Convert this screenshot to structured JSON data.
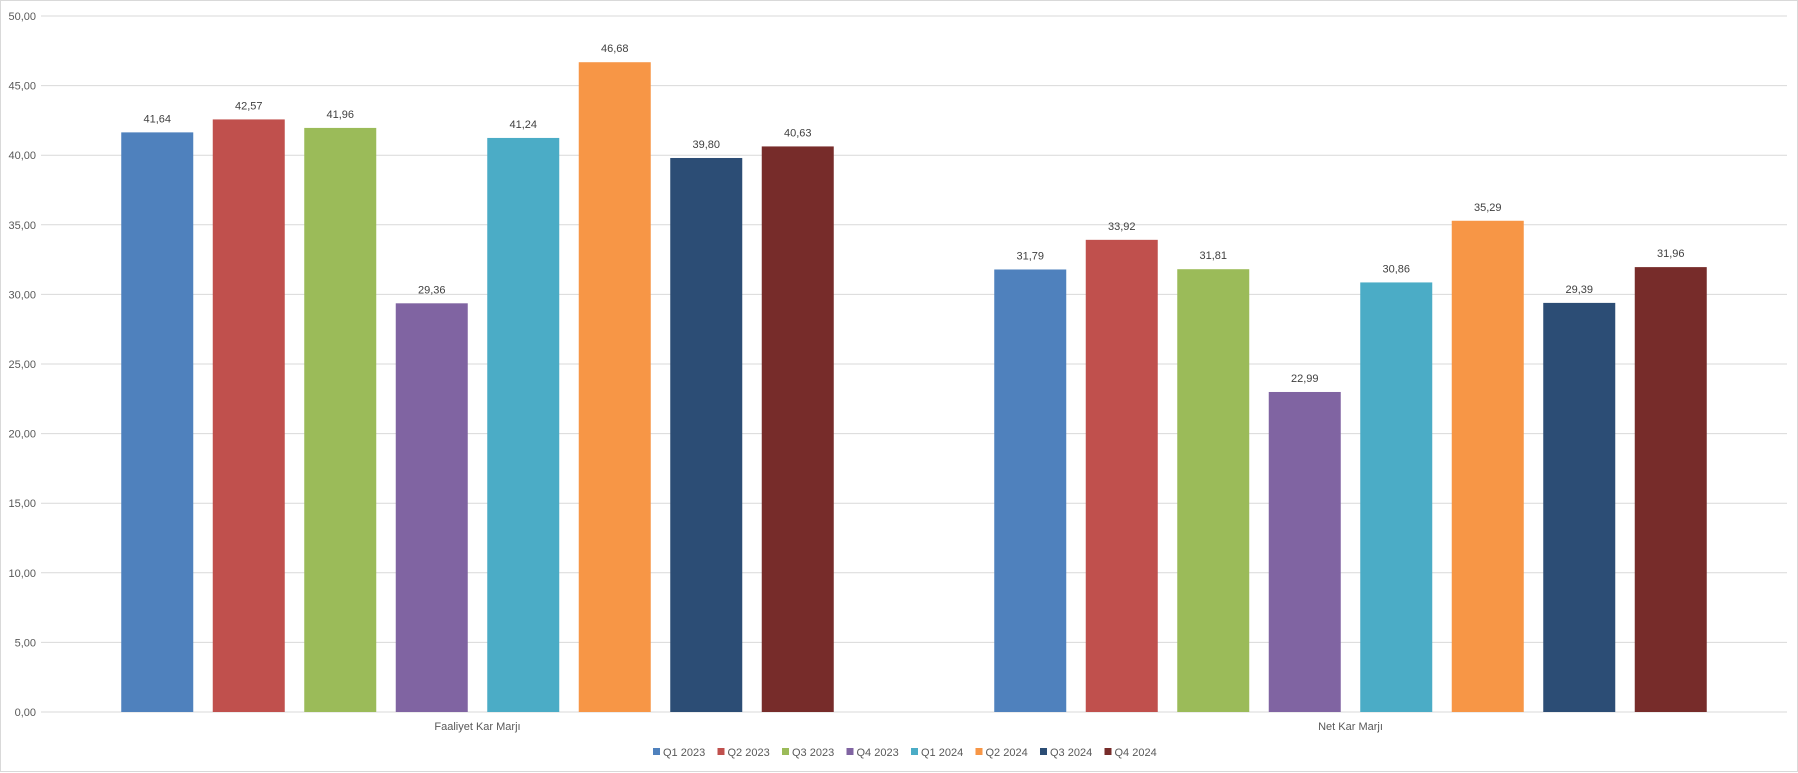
{
  "chart_data": {
    "type": "bar",
    "title": "",
    "xlabel": "",
    "ylabel": "",
    "categories": [
      "Faaliyet Kar Marjı",
      "Net Kar Marjı"
    ],
    "ylim": [
      0,
      50
    ],
    "yticks": [
      0,
      5,
      10,
      15,
      20,
      25,
      30,
      35,
      40,
      45,
      50
    ],
    "ytick_labels": [
      "0,00",
      "5,00",
      "10,00",
      "15,00",
      "20,00",
      "25,00",
      "30,00",
      "35,00",
      "40,00",
      "45,00",
      "50,00"
    ],
    "grid": true,
    "legend_position": "bottom",
    "series": [
      {
        "name": "Q1 2023",
        "color": "#4f81bd",
        "values": [
          41.64,
          31.79
        ],
        "labels": [
          "41,64",
          "31,79"
        ]
      },
      {
        "name": "Q2 2023",
        "color": "#c0504d",
        "values": [
          42.57,
          33.92
        ],
        "labels": [
          "42,57",
          "33,92"
        ]
      },
      {
        "name": "Q3 2023",
        "color": "#9bbb59",
        "values": [
          41.96,
          31.81
        ],
        "labels": [
          "41,96",
          "31,81"
        ]
      },
      {
        "name": "Q4 2023",
        "color": "#8064a2",
        "values": [
          29.36,
          22.99
        ],
        "labels": [
          "29,36",
          "22,99"
        ]
      },
      {
        "name": "Q1 2024",
        "color": "#4bacc6",
        "values": [
          41.24,
          30.86
        ],
        "labels": [
          "41,24",
          "30,86"
        ]
      },
      {
        "name": "Q2 2024",
        "color": "#f79646",
        "values": [
          46.68,
          35.29
        ],
        "labels": [
          "46,68",
          "35,29"
        ]
      },
      {
        "name": "Q3 2024",
        "color": "#2c4d75",
        "values": [
          39.8,
          29.39
        ],
        "labels": [
          "39,80",
          "29,39"
        ]
      },
      {
        "name": "Q4 2024",
        "color": "#772c2a",
        "values": [
          40.63,
          31.96
        ],
        "labels": [
          "40,63",
          "31,96"
        ]
      }
    ]
  }
}
